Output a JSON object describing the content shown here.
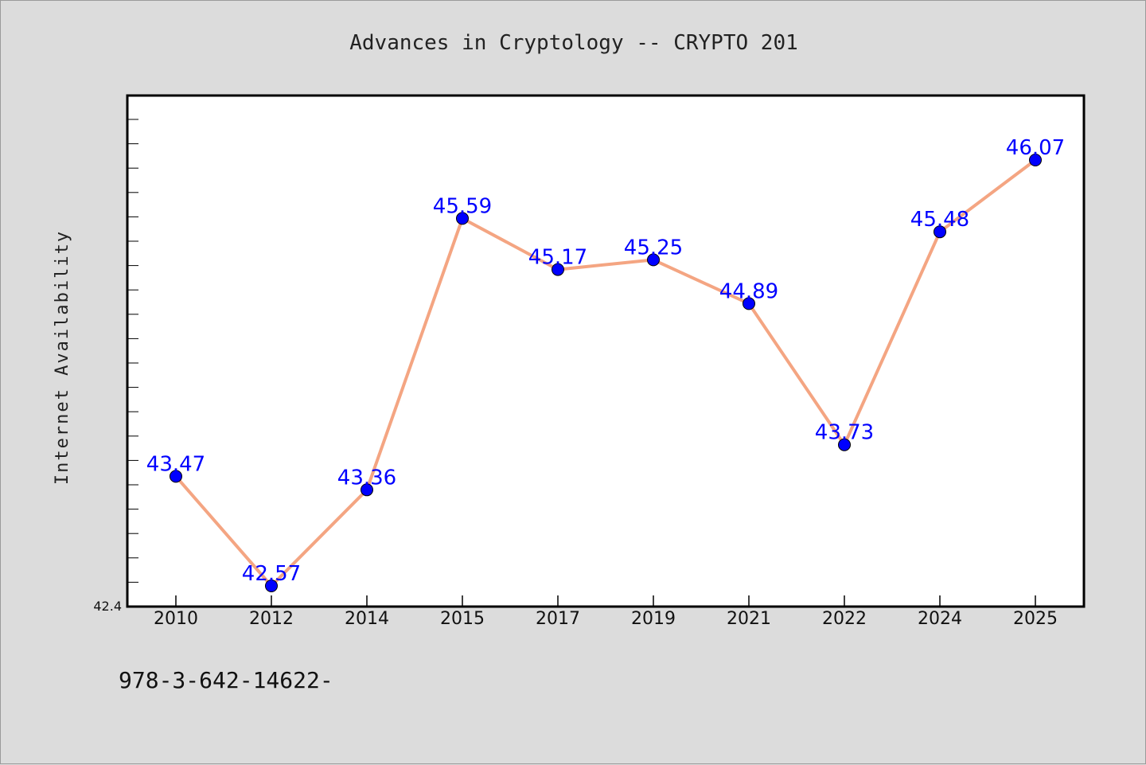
{
  "footer": {
    "text": "978-3-642-14622-"
  },
  "chart_data": {
    "type": "line",
    "title": "Advances in Cryptology -- CRYPTO 201",
    "xlabel": "",
    "ylabel": "Internet Availability",
    "x": [
      "2010",
      "2012",
      "2014",
      "2015",
      "2017",
      "2019",
      "2021",
      "2022",
      "2024",
      "2025"
    ],
    "series": [
      {
        "values": [
          43.47,
          42.57,
          43.36,
          45.59,
          45.17,
          45.25,
          44.89,
          43.73,
          45.48,
          46.07
        ]
      }
    ],
    "ylim": [
      42.4,
      46.6
    ],
    "y_tick_label": "42.4",
    "data_labels": true,
    "grid": false,
    "legend": "none",
    "colors": {
      "line": "#f4a582",
      "marker": "#0000ff",
      "label": "#0000ff"
    }
  }
}
